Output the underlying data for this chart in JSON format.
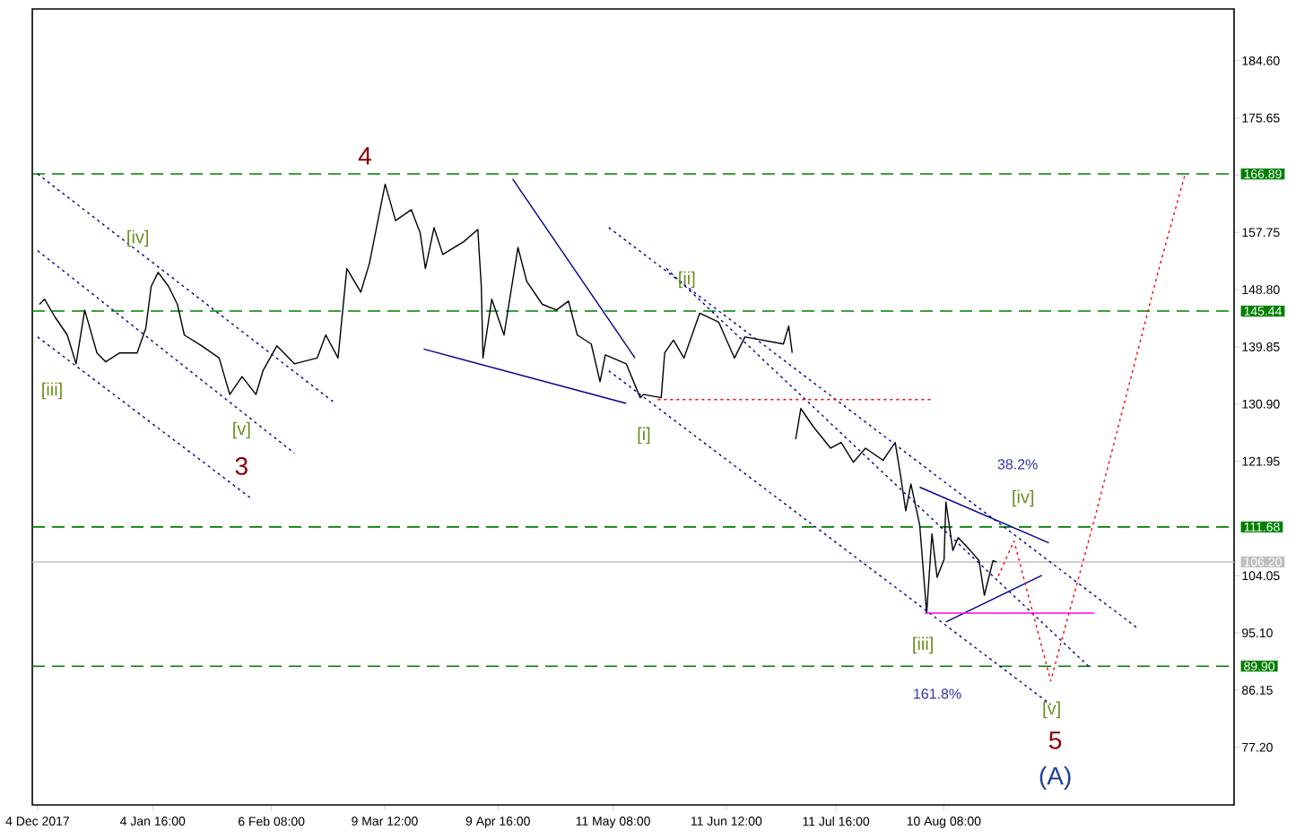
{
  "chart_data": {
    "type": "line",
    "xlim": [
      "2017-12-02T13:00",
      "2018-10-29T05:00"
    ],
    "ylim": [
      68.2,
      192.7
    ],
    "xticks": [
      {
        "value": "2017-12-04",
        "label": "4 Dec 2017"
      },
      {
        "value": "2018-01-04T16:00",
        "label": "4 Jan 16:00"
      },
      {
        "value": "2018-02-06T08:00",
        "label": "6 Feb 08:00"
      },
      {
        "value": "2018-03-09T12:00",
        "label": "9 Mar 12:00"
      },
      {
        "value": "2018-04-09T16:00",
        "label": "9 Apr 16:00"
      },
      {
        "value": "2018-05-11T08:00",
        "label": "11 May 08:00"
      },
      {
        "value": "2018-06-11T12:00",
        "label": "11 Jun 12:00"
      },
      {
        "value": "2018-07-11T16:00",
        "label": "11 Jul 16:00"
      },
      {
        "value": "2018-08-10T08:00",
        "label": "10 Aug 08:00"
      }
    ],
    "yticks": [
      {
        "value": 77.2,
        "label": "77.20"
      },
      {
        "value": 86.15,
        "label": "86.15"
      },
      {
        "value": 95.1,
        "label": "95.10"
      },
      {
        "value": 104.05,
        "label": "104.05"
      },
      {
        "value": 121.95,
        "label": "121.95"
      },
      {
        "value": 130.9,
        "label": "130.90"
      },
      {
        "value": 139.85,
        "label": "139.85"
      },
      {
        "value": 148.8,
        "label": "148.80"
      },
      {
        "value": 157.75,
        "label": "157.75"
      },
      {
        "value": 166.7,
        "label": null
      },
      {
        "value": 175.65,
        "label": "175.65"
      },
      {
        "value": 184.6,
        "label": "184.60"
      }
    ],
    "grid": false,
    "series": [
      {
        "color": "#000000",
        "line_style": "solid",
        "x": [
          "2017-12-04T12:00",
          "2017-12-05T22:00",
          "2017-12-08T19:00",
          "2017-12-12T04:00",
          "2017-12-14T14:00",
          "2017-12-16T23:00",
          "2017-12-20T08:00",
          "2017-12-22T18:00",
          "2017-12-26T14:00",
          "2017-12-31T09:00",
          "2018-01-02T19:00",
          "2018-01-04T06:00",
          "2018-01-06T04:00",
          "2018-01-09T01:00",
          "2018-01-11T11:00",
          "2018-01-13T09:00",
          "2018-01-18T04:00",
          "2018-01-22T23:00",
          "2018-01-25T21:00",
          "2018-01-29T06:00",
          "2018-02-02T02:00",
          "2018-02-04T00:00",
          "2018-02-07T20:00",
          "2018-02-12T16:00",
          "2018-02-18T22:00",
          "2018-02-21T07:00",
          "2018-02-24T16:00",
          "2018-02-27T02:00",
          "2018-03-02T22:00",
          "2018-03-05T07:00",
          "2018-03-07T06:00",
          "2018-03-09T15:00",
          "2018-03-12T12:00",
          "2018-03-16T20:00",
          "2018-03-19T06:00",
          "2018-03-20T17:00",
          "2018-03-23T02:00",
          "2018-03-25T12:00",
          "2018-03-31T06:00",
          "2018-04-04T03:00",
          "2018-04-05T02:00",
          "2018-04-05T13:00",
          "2018-04-07T23:00",
          "2018-04-11T08:00",
          "2018-04-15T04:00",
          "2018-04-17T14:00",
          "2018-04-21T21:00",
          "2018-04-25T18:00",
          "2018-04-29T02:00",
          "2018-05-01T12:00",
          "2018-05-05T08:00",
          "2018-05-07T18:00",
          "2018-05-09T05:00",
          "2018-05-14T23:00",
          "2018-05-18T19:00",
          "2018-05-19T18:00",
          "2018-05-24T14:00",
          "2018-05-25T13:00",
          "2018-05-27T23:00",
          "2018-05-30T20:00",
          "2018-06-04T04:00",
          "2018-06-09T10:00",
          "2018-06-13T18:00",
          "2018-06-16T15:00",
          "2018-06-27T05:00",
          "2018-06-28T16:00",
          "2018-06-29T15:00",
          "2018-06-30T02:00",
          "2018-06-30T14:00",
          "2018-07-02T00:00",
          "2018-07-05T09:00",
          "2018-07-10T05:00",
          "2018-07-13T02:00",
          "2018-07-16T11:00",
          "2018-07-19T19:00",
          "2018-07-24T15:00",
          "2018-07-27T23:00",
          "2018-07-29T10:00",
          "2018-07-30T21:00",
          "2018-08-01T07:00",
          "2018-08-03T17:00",
          "2018-08-05T15:00",
          "2018-08-07T02:00",
          "2018-08-08T12:00",
          "2018-08-10T10:00",
          "2018-08-10T22:00",
          "2018-08-12T20:00",
          "2018-08-14T07:00",
          "2018-08-17T15:00",
          "2018-08-20T01:00",
          "2018-08-21T12:00",
          "2018-08-23T21:00",
          "2018-08-24T20:00"
        ],
        "values": [
          146.5,
          147.3,
          144.5,
          141.7,
          137.2,
          145.6,
          138.9,
          137.5,
          138.9,
          138.9,
          142.8,
          149.3,
          151.5,
          149.3,
          146.5,
          141.7,
          140.0,
          138.1,
          132.4,
          135.2,
          132.4,
          136.1,
          140.0,
          137.2,
          138.1,
          141.7,
          138.1,
          152.1,
          148.4,
          152.9,
          158.5,
          165.3,
          159.6,
          161.3,
          157.7,
          152.1,
          158.5,
          154.3,
          156.3,
          158.2,
          149.3,
          138.1,
          147.3,
          141.7,
          155.4,
          150.1,
          146.5,
          145.6,
          147.0,
          141.7,
          140.3,
          134.4,
          138.6,
          137.2,
          131.9,
          132.4,
          131.9,
          138.9,
          140.9,
          138.1,
          145.1,
          143.7,
          138.1,
          141.4,
          140.3,
          143.1,
          138.9,
          null,
          125.4,
          130.2,
          127.4,
          124.0,
          124.9,
          121.8,
          124.0,
          122.1,
          124.9,
          119.8,
          114.2,
          118.4,
          112.0,
          98.2,
          110.6,
          103.8,
          106.6,
          115.6,
          108.0,
          110.0,
          108.0,
          106.4,
          101.0,
          106.4,
          106.2
        ]
      },
      {
        "color": "#00008b",
        "line_style": "dotted",
        "x": [
          "2017-12-04T00:00",
          "2018-02-23T17:00"
        ],
        "values": [
          166.9,
          131.1
        ]
      },
      {
        "color": "#00008b",
        "line_style": "dotted",
        "x": [
          "2017-12-04T00:00",
          "2018-02-12T16:00"
        ],
        "values": [
          154.9,
          123.2
        ]
      },
      {
        "color": "#00008b",
        "line_style": "dotted",
        "x": [
          "2017-12-04T00:00",
          "2018-01-31T15:00"
        ],
        "values": [
          141.4,
          116.2
        ]
      },
      {
        "color": "#00008b",
        "line_style": "dotted",
        "x": [
          "2018-05-10T04:00",
          "2018-10-02T07:00"
        ],
        "values": [
          158.5,
          96.0
        ]
      },
      {
        "color": "#00008b",
        "line_style": "dotted",
        "x": [
          "2018-05-26T00:00",
          "2018-09-19T08:00"
        ],
        "values": [
          152.1,
          89.8
        ]
      },
      {
        "color": "#00008b",
        "line_style": "dotted",
        "x": [
          "2018-05-10T04:00",
          "2018-09-08T18:00"
        ],
        "values": [
          136.1,
          83.9
        ]
      },
      {
        "color": "#00008b",
        "line_style": "solid",
        "x": [
          "2018-04-13T17:00",
          "2018-05-17T09:00"
        ],
        "values": [
          166.1,
          138.1
        ]
      },
      {
        "color": "#00008b",
        "line_style": "solid",
        "x": [
          "2018-03-20T05:00",
          "2018-05-14T23:00"
        ],
        "values": [
          139.5,
          131.0
        ]
      },
      {
        "color": "#00008b",
        "line_style": "solid",
        "x": [
          "2018-08-03T17:00",
          "2018-09-08T06:00"
        ],
        "values": [
          117.9,
          109.2
        ]
      },
      {
        "color": "#00008b",
        "line_style": "solid",
        "x": [
          "2018-08-10T22:00",
          "2018-09-06T08:00"
        ],
        "values": [
          96.8,
          104.1
        ]
      },
      {
        "color": "#ff0000",
        "line_style": "dotted",
        "x": [
          "2018-05-23T15:00",
          "2018-08-07T02:00"
        ],
        "values": [
          131.6,
          131.6
        ]
      },
      {
        "color": "#ff00ff",
        "line_style": "solid",
        "x": [
          "2018-08-05T03:00",
          "2018-09-20T18:00"
        ],
        "values": [
          98.2,
          98.2
        ]
      },
      {
        "color": "#ff0000",
        "line_style": "dotted",
        "x": [
          "2018-08-25T08:00",
          "2018-08-29T16:00",
          "2018-09-08T18:00",
          "2018-09-20T18:00",
          "2018-10-08T13:00",
          "2018-10-15T18:00"
        ],
        "values": [
          104.0,
          109.5,
          87.6,
          112.8,
          152.1,
          166.9
        ]
      }
    ],
    "ref_lines": [
      {
        "axis": "y",
        "value": 166.89,
        "label": "166.89",
        "color": "#008000",
        "line_style": "dashed"
      },
      {
        "axis": "y",
        "value": 145.44,
        "label": "145.44",
        "color": "#008000",
        "line_style": "dashed"
      },
      {
        "axis": "y",
        "value": 111.68,
        "label": "111.68",
        "color": "#008000",
        "line_style": "dashed"
      },
      {
        "axis": "y",
        "value": 106.2,
        "label": "106.20",
        "color": "#c0c0c0",
        "line_style": "solid"
      },
      {
        "axis": "y",
        "value": 89.9,
        "label": "89.90",
        "color": "#008000",
        "line_style": "dashed"
      }
    ],
    "annotations": [
      "4",
      "3",
      "[iv]",
      "[iii]",
      "[v]",
      "[ii]",
      "[i]",
      "[iv]",
      "38.2%",
      "[iii]",
      "161.8%",
      "[v]",
      "5",
      "(A)"
    ]
  }
}
